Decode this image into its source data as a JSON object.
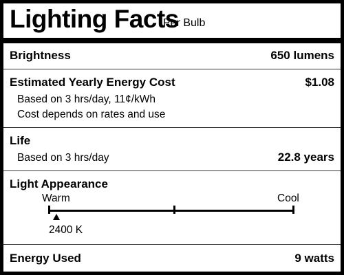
{
  "title": "Lighting Facts",
  "subtitle": "Per Bulb",
  "brightness": {
    "label": "Brightness",
    "value": "650 lumens"
  },
  "energy_cost": {
    "label": "Estimated Yearly Energy Cost",
    "value": "$1.08",
    "note1": "Based on 3 hrs/day, 11¢/kWh",
    "note2": "Cost depends on rates and use"
  },
  "life": {
    "label": "Life",
    "note": "Based on 3 hrs/day",
    "value": "22.8 years"
  },
  "light_appearance": {
    "label": "Light Appearance",
    "warm_label": "Warm",
    "cool_label": "Cool",
    "marker_value": "2400 K"
  },
  "energy_used": {
    "label": "Energy Used",
    "value": "9 watts"
  }
}
